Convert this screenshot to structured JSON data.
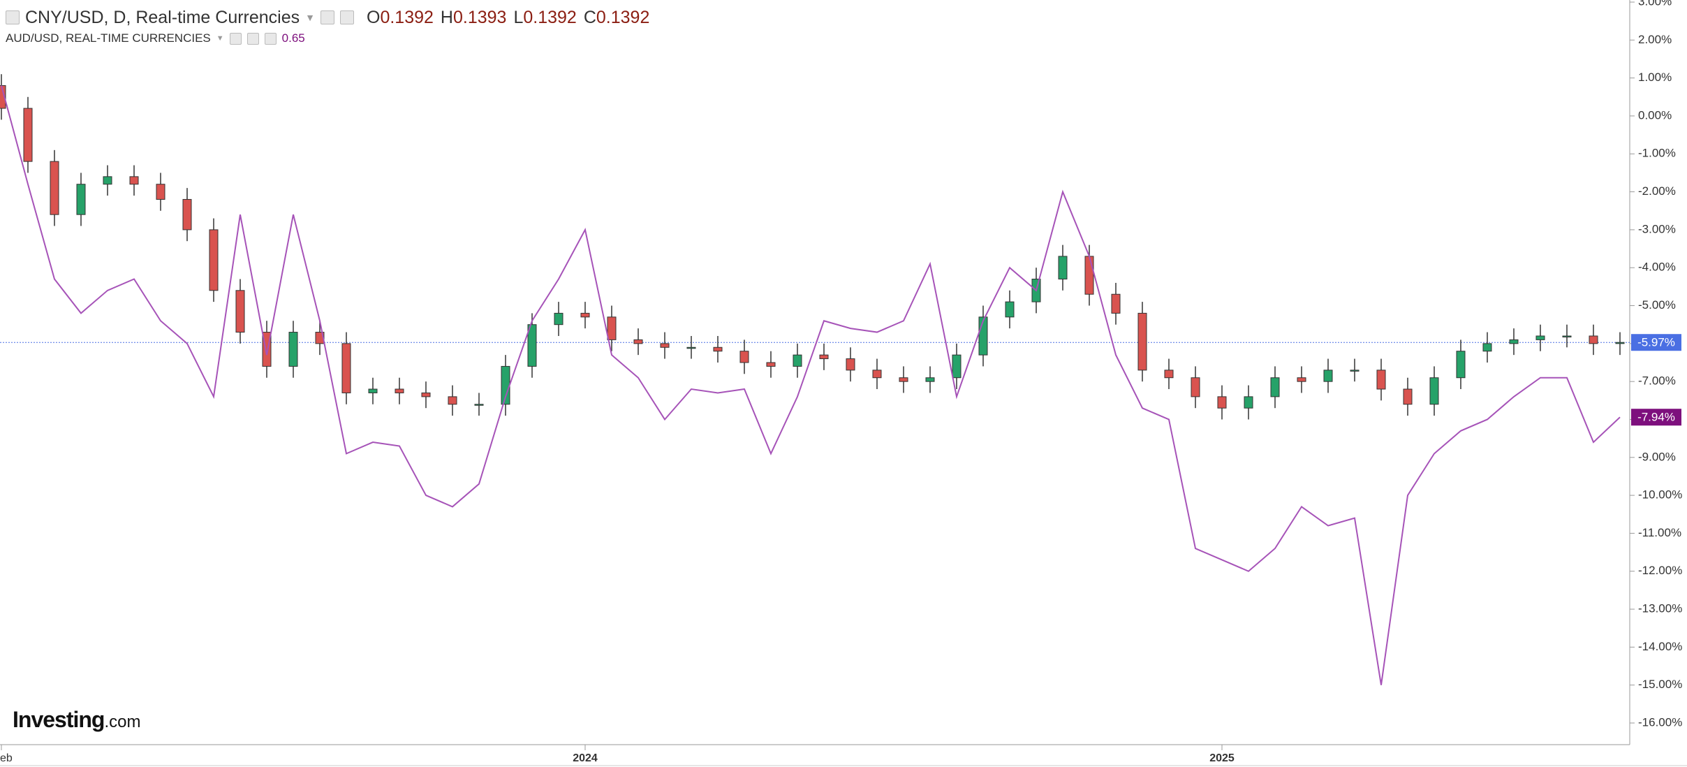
{
  "chart_data": {
    "type": "candlestick",
    "ohlc": [
      {
        "label": "O",
        "value": 0.1392
      },
      {
        "label": "H",
        "value": 0.1393
      },
      {
        "label": "L",
        "value": 0.1392
      },
      {
        "label": "C",
        "value": 0.1392
      }
    ],
    "logo": {
      "brand": "Investing",
      "suffix": ".com"
    },
    "categories": [
      "eb",
      null,
      null,
      null,
      null,
      null,
      null,
      null,
      null,
      null,
      null,
      null,
      null,
      null,
      null,
      null,
      null,
      null,
      null,
      null,
      null,
      null,
      "2024",
      null,
      null,
      null,
      null,
      null,
      null,
      null,
      null,
      null,
      null,
      null,
      null,
      null,
      null,
      null,
      null,
      null,
      null,
      null,
      null,
      null,
      null,
      null,
      "2025",
      null,
      null,
      null,
      null,
      null,
      null,
      null,
      null,
      null,
      null,
      null,
      null,
      null,
      null,
      null
    ],
    "ylim": [
      3,
      -16
    ],
    "yticks": [
      {
        "value": 3,
        "label": "3.00%"
      },
      {
        "value": 2,
        "label": "2.00%"
      },
      {
        "value": 1,
        "label": "1.00%"
      },
      {
        "value": 0,
        "label": "0.00%"
      },
      {
        "value": -1,
        "label": "-1.00%"
      },
      {
        "value": -2,
        "label": "-2.00%"
      },
      {
        "value": -3,
        "label": "-3.00%"
      },
      {
        "value": -4,
        "label": "-4.00%"
      },
      {
        "value": -5,
        "label": "-5.00%"
      },
      {
        "value": -6,
        "label": "-6.00%"
      },
      {
        "value": -7,
        "label": "-7.00%"
      },
      {
        "value": -8,
        "label": "-8.00%"
      },
      {
        "value": -9,
        "label": "-9.00%"
      },
      {
        "value": -10,
        "label": "-10.00%"
      },
      {
        "value": -11,
        "label": "-11.00%"
      },
      {
        "value": -12,
        "label": "-12.00%"
      },
      {
        "value": -13,
        "label": "-13.00%"
      },
      {
        "value": -14,
        "label": "-14.00%"
      },
      {
        "value": -15,
        "label": "-15.00%"
      },
      {
        "value": -16,
        "label": "-16.00%"
      }
    ],
    "series": [
      {
        "name": "CNY/USD, D, Real-time Currencies",
        "type": "candlestick",
        "up_color": "#26a269",
        "down_color": "#d9534f",
        "badge_color": "#4a6fe3",
        "last_label": "-5.97%",
        "open": [
          0.8,
          0.2,
          -1.2,
          -2.6,
          -1.8,
          -1.6,
          -1.8,
          -2.2,
          -3.0,
          -4.6,
          -5.7,
          -6.6,
          -5.7,
          -6.0,
          -7.3,
          -7.2,
          -7.3,
          -7.4,
          -7.6,
          -7.6,
          -6.6,
          -5.5,
          -5.2,
          -5.3,
          -5.9,
          -6.0,
          -6.1,
          -6.1,
          -6.2,
          -6.5,
          -6.6,
          -6.3,
          -6.4,
          -6.7,
          -6.9,
          -7.0,
          -6.9,
          -6.3,
          -5.3,
          -4.9,
          -4.3,
          -3.7,
          -4.7,
          -5.2,
          -6.7,
          -6.9,
          -7.4,
          -7.7,
          -7.4,
          -6.9,
          -7.0,
          -6.7,
          -6.7,
          -7.2,
          -7.6,
          -6.9,
          -6.2,
          -6.0,
          -5.9,
          -5.8,
          -5.8,
          -6.0
        ],
        "high": [
          1.1,
          0.5,
          -0.9,
          -1.5,
          -1.3,
          -1.3,
          -1.5,
          -1.9,
          -2.7,
          -4.3,
          -5.4,
          -5.4,
          -5.4,
          -5.7,
          -6.9,
          -6.9,
          -7.0,
          -7.1,
          -7.3,
          -6.3,
          -5.2,
          -4.9,
          -4.9,
          -5.0,
          -5.6,
          -5.7,
          -5.8,
          -5.8,
          -5.9,
          -6.2,
          -6.0,
          -6.0,
          -6.1,
          -6.4,
          -6.6,
          -6.6,
          -6.0,
          -5.0,
          -4.6,
          -4.0,
          -3.4,
          -3.4,
          -4.4,
          -4.9,
          -6.4,
          -6.6,
          -7.1,
          -7.1,
          -6.6,
          -6.6,
          -6.4,
          -6.4,
          -6.4,
          -6.9,
          -6.6,
          -5.9,
          -5.7,
          -5.6,
          -5.5,
          -5.5,
          -5.5,
          -5.7
        ],
        "low": [
          -0.1,
          -1.5,
          -2.9,
          -2.9,
          -2.1,
          -2.1,
          -2.5,
          -3.3,
          -4.9,
          -6.0,
          -6.9,
          -6.9,
          -6.3,
          -7.6,
          -7.6,
          -7.6,
          -7.7,
          -7.9,
          -7.9,
          -7.9,
          -6.9,
          -5.8,
          -5.6,
          -6.2,
          -6.3,
          -6.4,
          -6.4,
          -6.5,
          -6.8,
          -6.9,
          -6.9,
          -6.7,
          -7.0,
          -7.2,
          -7.3,
          -7.3,
          -7.2,
          -6.6,
          -5.6,
          -5.2,
          -4.6,
          -5.0,
          -5.5,
          -7.0,
          -7.2,
          -7.7,
          -8.0,
          -8.0,
          -7.7,
          -7.3,
          -7.3,
          -7.0,
          -7.5,
          -7.9,
          -7.9,
          -7.2,
          -6.5,
          -6.3,
          -6.2,
          -6.1,
          -6.3,
          -6.3
        ],
        "close": [
          0.2,
          -1.2,
          -2.6,
          -1.8,
          -1.6,
          -1.8,
          -2.2,
          -3.0,
          -4.6,
          -5.7,
          -6.6,
          -5.7,
          -6.0,
          -7.3,
          -7.2,
          -7.3,
          -7.4,
          -7.6,
          -7.6,
          -6.6,
          -5.5,
          -5.2,
          -5.3,
          -5.9,
          -6.0,
          -6.1,
          -6.1,
          -6.2,
          -6.5,
          -6.6,
          -6.3,
          -6.4,
          -6.7,
          -6.9,
          -7.0,
          -6.9,
          -6.3,
          -5.3,
          -4.9,
          -4.3,
          -3.7,
          -4.7,
          -5.2,
          -6.7,
          -6.9,
          -7.4,
          -7.7,
          -7.4,
          -6.9,
          -7.0,
          -6.7,
          -6.7,
          -7.2,
          -7.6,
          -6.9,
          -6.2,
          -6.0,
          -5.9,
          -5.8,
          -5.8,
          -6.0,
          -5.97
        ]
      },
      {
        "name": "AUD/USD, REAL-TIME CURRENCIES",
        "type": "line",
        "color": "#a653b8",
        "badge_color": "#7d0f7d",
        "legend_value": 0.65,
        "last_label": "-7.94%",
        "values": [
          0.8,
          -1.8,
          -4.3,
          -5.2,
          -4.6,
          -4.3,
          -5.4,
          -6.0,
          -7.4,
          -2.6,
          -6.3,
          -2.6,
          -5.4,
          -8.9,
          -8.6,
          -8.7,
          -10.0,
          -10.3,
          -9.7,
          -7.4,
          -5.4,
          -4.3,
          -3.0,
          -6.3,
          -6.9,
          -8.0,
          -7.2,
          -7.3,
          -7.2,
          -8.9,
          -7.4,
          -5.4,
          -5.6,
          -5.7,
          -5.4,
          -3.9,
          -7.4,
          -5.4,
          -4.0,
          -4.6,
          -2.0,
          -3.7,
          -6.3,
          -7.7,
          -8.0,
          -11.4,
          -11.7,
          -12.0,
          -11.4,
          -10.3,
          -10.8,
          -10.6,
          -15.0,
          -10.0,
          -8.9,
          -8.3,
          -8.0,
          -7.4,
          -6.9,
          -6.9,
          -8.6,
          -7.94
        ]
      }
    ]
  }
}
